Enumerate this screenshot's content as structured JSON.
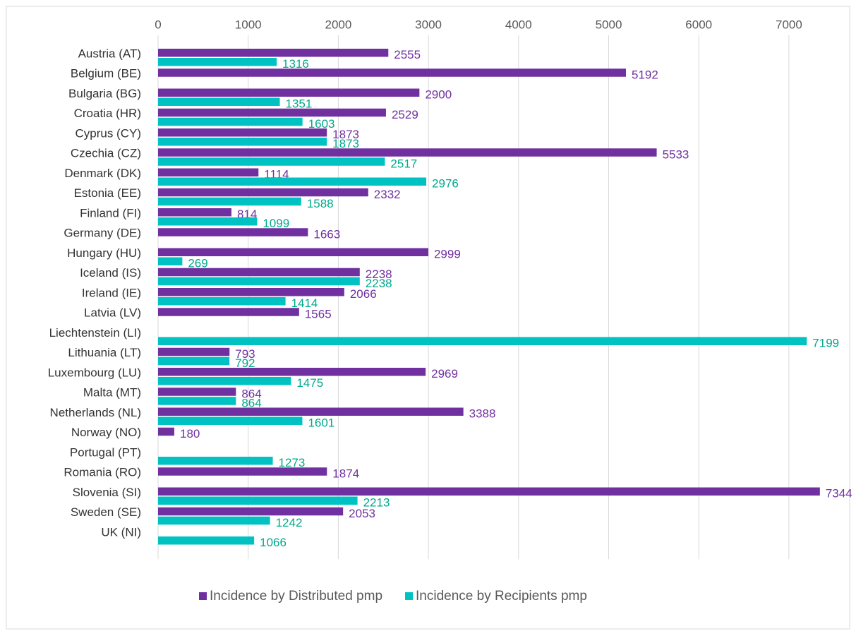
{
  "chart_data": {
    "type": "hbar",
    "categories": [
      "Austria (AT)",
      "Belgium (BE)",
      "Bulgaria (BG)",
      "Croatia (HR)",
      "Cyprus (CY)",
      "Czechia (CZ)",
      "Denmark (DK)",
      "Estonia (EE)",
      "Finland (FI)",
      "Germany (DE)",
      "Hungary (HU)",
      "Iceland (IS)",
      "Ireland (IE)",
      "Latvia (LV)",
      "Liechtenstein (LI)",
      "Lithuania (LT)",
      "Luxembourg (LU)",
      "Malta (MT)",
      "Netherlands (NL)",
      "Norway (NO)",
      "Portugal (PT)",
      "Romania (RO)",
      "Slovenia (SI)",
      "Sweden (SE)",
      "UK (NI)"
    ],
    "series": [
      {
        "name": "Incidence by Distributed pmp",
        "color": "#7030a0",
        "label_color": "#7030a0",
        "values": [
          2555,
          5192,
          2900,
          2529,
          1873,
          5533,
          1114,
          2332,
          814,
          1663,
          2999,
          2238,
          2066,
          1565,
          null,
          793,
          2969,
          864,
          3388,
          180,
          null,
          1874,
          7344,
          2053,
          null
        ]
      },
      {
        "name": "Incidence by Recipients pmp",
        "color": "#00c2c2",
        "label_color": "#00a88c",
        "values": [
          1316,
          null,
          1351,
          1603,
          1873,
          2517,
          2976,
          1588,
          1099,
          null,
          269,
          2238,
          1414,
          null,
          7199,
          792,
          1475,
          864,
          1601,
          null,
          1273,
          null,
          2213,
          1242,
          1066
        ]
      }
    ],
    "xlim": [
      0,
      7500
    ],
    "xticks": [
      0,
      1000,
      2000,
      3000,
      4000,
      5000,
      6000,
      7000
    ],
    "grid": true,
    "legend": "bottom"
  }
}
